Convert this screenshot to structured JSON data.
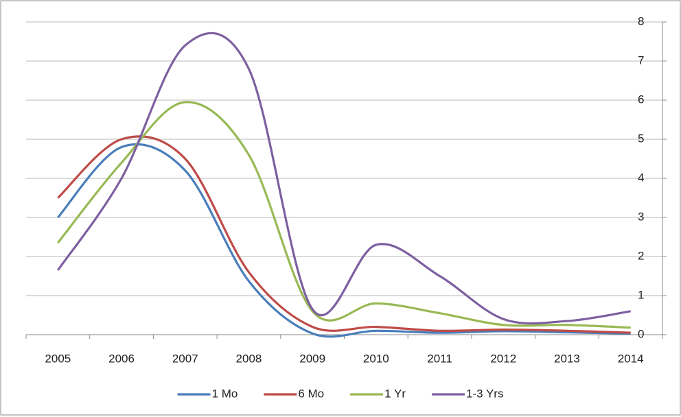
{
  "chart_data": {
    "type": "line",
    "categories": [
      "2005",
      "2006",
      "2007",
      "2008",
      "2009",
      "2010",
      "2011",
      "2012",
      "2013",
      "2014"
    ],
    "series": [
      {
        "name": "1 Mo",
        "color": "#4a7ebb",
        "values": [
          3.0,
          4.8,
          4.2,
          1.37,
          0.03,
          0.1,
          0.05,
          0.09,
          0.06,
          0.03
        ]
      },
      {
        "name": "6 Mo",
        "color": "#be4b48",
        "values": [
          3.5,
          5.0,
          4.5,
          1.6,
          0.2,
          0.2,
          0.1,
          0.13,
          0.1,
          0.05
        ]
      },
      {
        "name": "1 Yr",
        "color": "#98b954",
        "values": [
          2.35,
          4.4,
          5.95,
          4.6,
          0.6,
          0.8,
          0.55,
          0.25,
          0.25,
          0.18
        ]
      },
      {
        "name": "1-3 Yrs",
        "color": "#7d60a0",
        "values": [
          1.65,
          4.0,
          7.4,
          6.8,
          0.65,
          2.3,
          1.5,
          0.4,
          0.35,
          0.6
        ]
      }
    ],
    "ylim": [
      0,
      8
    ],
    "yticks": [
      0,
      1,
      2,
      3,
      4,
      5,
      6,
      7,
      8
    ],
    "grid": true,
    "smooth": true,
    "legend": "bottom"
  }
}
